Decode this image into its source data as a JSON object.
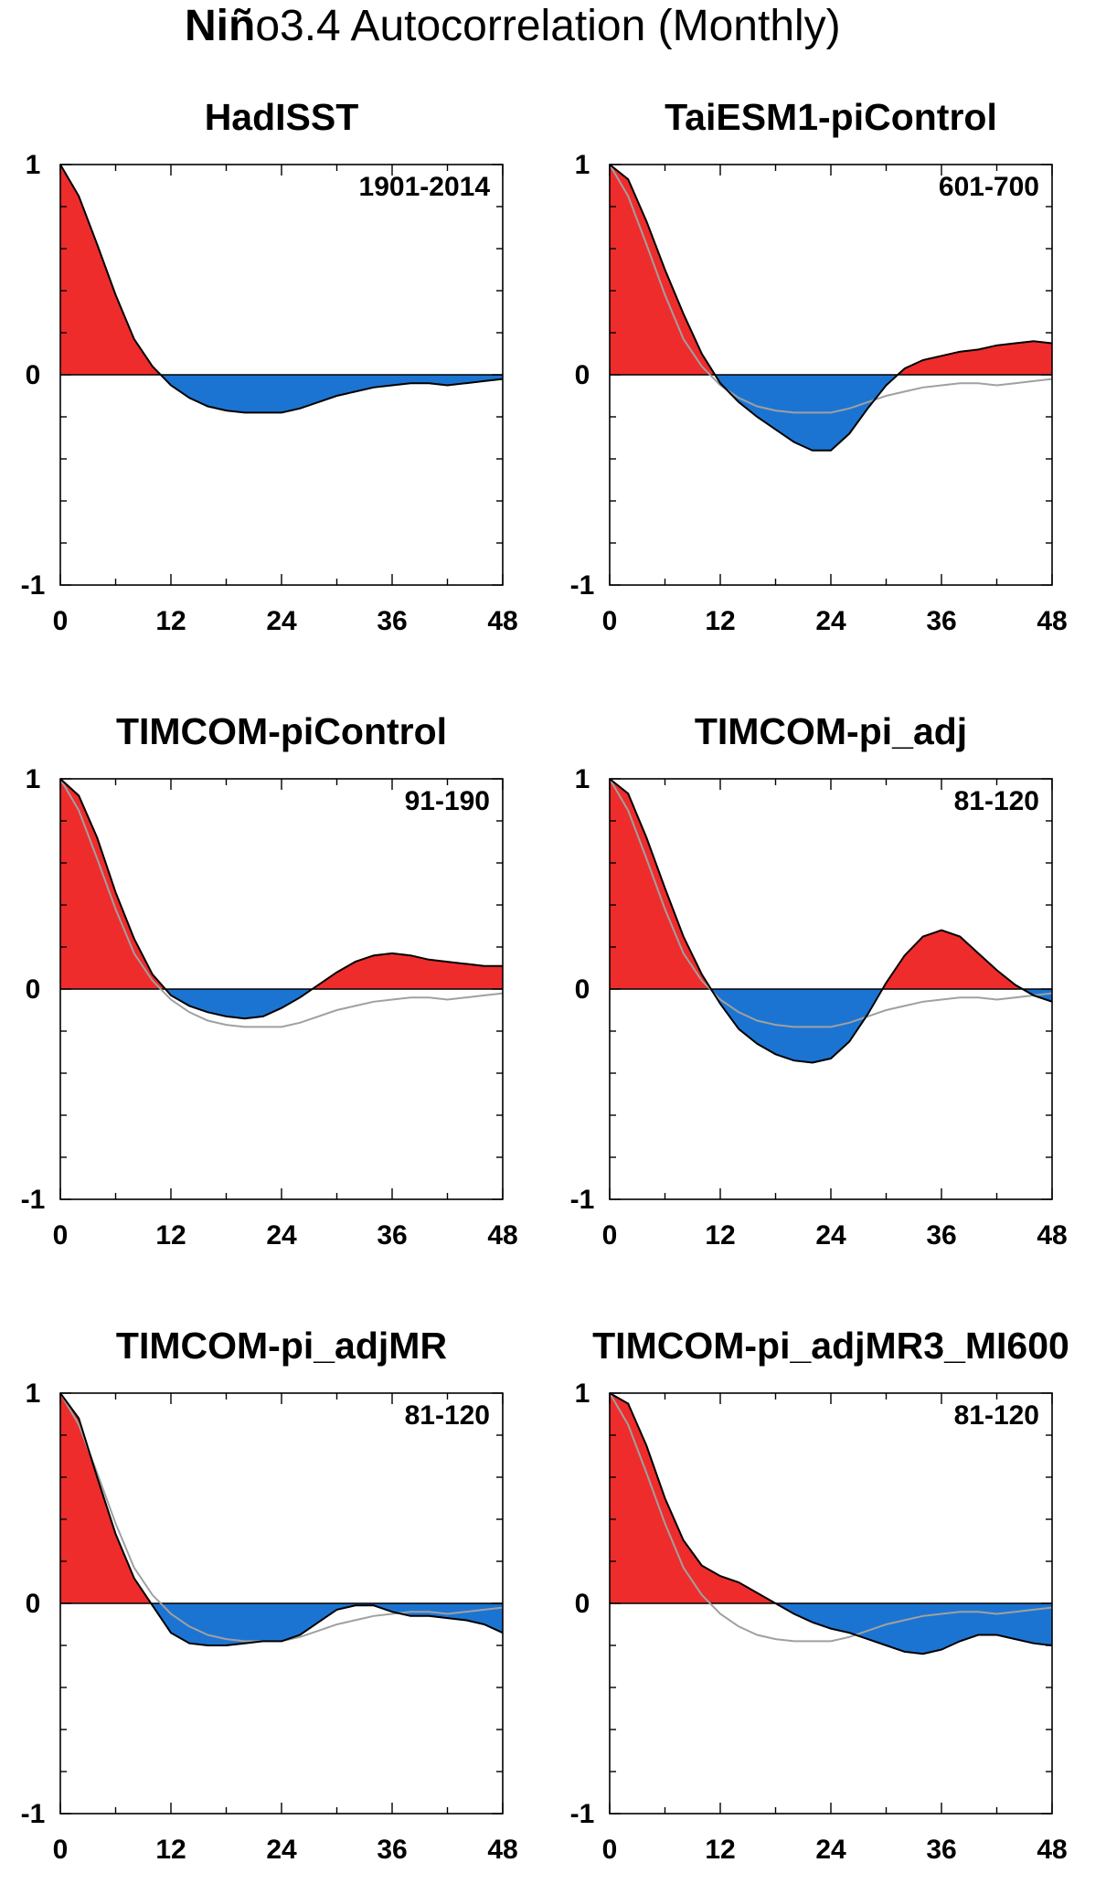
{
  "figure": {
    "title_bold": "Niñ",
    "title_rest": "o3.4 Autocorrelation (Monthly)"
  },
  "colors": {
    "positive": "#ee2c2c",
    "negative": "#1c74d2",
    "line": "#000000",
    "reference": "#a0a0a0"
  },
  "chart_data": [
    {
      "type": "area",
      "title": "HadISST",
      "period": "1901-2014",
      "xlim": [
        0,
        48
      ],
      "ylim": [
        -1,
        1
      ],
      "xticks": [
        0,
        12,
        24,
        36,
        48
      ],
      "yticks": [
        -1,
        0,
        1
      ],
      "xtick_labels": [
        "0",
        "12",
        "24",
        "36",
        "48"
      ],
      "ytick_labels": [
        "-1",
        "0",
        "1"
      ],
      "x": [
        0,
        2,
        4,
        6,
        8,
        10,
        12,
        14,
        16,
        18,
        20,
        22,
        24,
        26,
        28,
        30,
        32,
        34,
        36,
        38,
        40,
        42,
        44,
        46,
        48
      ],
      "values": [
        1.0,
        0.85,
        0.62,
        0.38,
        0.17,
        0.04,
        -0.05,
        -0.11,
        -0.15,
        -0.17,
        -0.18,
        -0.18,
        -0.18,
        -0.16,
        -0.13,
        -0.1,
        -0.08,
        -0.06,
        -0.05,
        -0.04,
        -0.04,
        -0.05,
        -0.04,
        -0.03,
        -0.02
      ]
    },
    {
      "type": "area",
      "title": "TaiESM1-piControl",
      "period": "601-700",
      "xlim": [
        0,
        48
      ],
      "ylim": [
        -1,
        1
      ],
      "xticks": [
        0,
        12,
        24,
        36,
        48
      ],
      "yticks": [
        -1,
        0,
        1
      ],
      "xtick_labels": [
        "0",
        "12",
        "24",
        "36",
        "48"
      ],
      "ytick_labels": [
        "-1",
        "0",
        "1"
      ],
      "x": [
        0,
        2,
        4,
        6,
        8,
        10,
        12,
        14,
        16,
        18,
        20,
        22,
        24,
        26,
        28,
        30,
        32,
        34,
        36,
        38,
        40,
        42,
        44,
        46,
        48
      ],
      "values": [
        1.0,
        0.93,
        0.73,
        0.5,
        0.29,
        0.1,
        -0.04,
        -0.13,
        -0.2,
        -0.26,
        -0.32,
        -0.36,
        -0.36,
        -0.28,
        -0.16,
        -0.05,
        0.03,
        0.07,
        0.09,
        0.11,
        0.12,
        0.14,
        0.15,
        0.16,
        0.15
      ],
      "reference_values": [
        1.0,
        0.85,
        0.62,
        0.38,
        0.17,
        0.04,
        -0.05,
        -0.11,
        -0.15,
        -0.17,
        -0.18,
        -0.18,
        -0.18,
        -0.16,
        -0.13,
        -0.1,
        -0.08,
        -0.06,
        -0.05,
        -0.04,
        -0.04,
        -0.05,
        -0.04,
        -0.03,
        -0.02
      ]
    },
    {
      "type": "area",
      "title": "TIMCOM-piControl",
      "period": "91-190",
      "xlim": [
        0,
        48
      ],
      "ylim": [
        -1,
        1
      ],
      "xticks": [
        0,
        12,
        24,
        36,
        48
      ],
      "yticks": [
        -1,
        0,
        1
      ],
      "xtick_labels": [
        "0",
        "12",
        "24",
        "36",
        "48"
      ],
      "ytick_labels": [
        "-1",
        "0",
        "1"
      ],
      "x": [
        0,
        2,
        4,
        6,
        8,
        10,
        12,
        14,
        16,
        18,
        20,
        22,
        24,
        26,
        28,
        30,
        32,
        34,
        36,
        38,
        40,
        42,
        44,
        46,
        48
      ],
      "values": [
        1.0,
        0.92,
        0.72,
        0.46,
        0.24,
        0.07,
        -0.03,
        -0.08,
        -0.11,
        -0.13,
        -0.14,
        -0.13,
        -0.09,
        -0.04,
        0.02,
        0.08,
        0.13,
        0.16,
        0.17,
        0.16,
        0.14,
        0.13,
        0.12,
        0.11,
        0.11
      ],
      "reference_values": [
        1.0,
        0.85,
        0.62,
        0.38,
        0.17,
        0.04,
        -0.05,
        -0.11,
        -0.15,
        -0.17,
        -0.18,
        -0.18,
        -0.18,
        -0.16,
        -0.13,
        -0.1,
        -0.08,
        -0.06,
        -0.05,
        -0.04,
        -0.04,
        -0.05,
        -0.04,
        -0.03,
        -0.02
      ]
    },
    {
      "type": "area",
      "title": "TIMCOM-pi_adj",
      "period": "81-120",
      "xlim": [
        0,
        48
      ],
      "ylim": [
        -1,
        1
      ],
      "xticks": [
        0,
        12,
        24,
        36,
        48
      ],
      "yticks": [
        -1,
        0,
        1
      ],
      "xtick_labels": [
        "0",
        "12",
        "24",
        "36",
        "48"
      ],
      "ytick_labels": [
        "-1",
        "0",
        "1"
      ],
      "x": [
        0,
        2,
        4,
        6,
        8,
        10,
        12,
        14,
        16,
        18,
        20,
        22,
        24,
        26,
        28,
        30,
        32,
        34,
        36,
        38,
        40,
        42,
        44,
        46,
        48
      ],
      "values": [
        1.0,
        0.93,
        0.72,
        0.48,
        0.25,
        0.07,
        -0.07,
        -0.19,
        -0.26,
        -0.31,
        -0.34,
        -0.35,
        -0.33,
        -0.25,
        -0.12,
        0.03,
        0.16,
        0.25,
        0.28,
        0.25,
        0.17,
        0.09,
        0.02,
        -0.03,
        -0.06
      ],
      "reference_values": [
        1.0,
        0.85,
        0.62,
        0.38,
        0.17,
        0.04,
        -0.05,
        -0.11,
        -0.15,
        -0.17,
        -0.18,
        -0.18,
        -0.18,
        -0.16,
        -0.13,
        -0.1,
        -0.08,
        -0.06,
        -0.05,
        -0.04,
        -0.04,
        -0.05,
        -0.04,
        -0.03,
        -0.02
      ]
    },
    {
      "type": "area",
      "title": "TIMCOM-pi_adjMR",
      "period": "81-120",
      "xlim": [
        0,
        48
      ],
      "ylim": [
        -1,
        1
      ],
      "xticks": [
        0,
        12,
        24,
        36,
        48
      ],
      "yticks": [
        -1,
        0,
        1
      ],
      "xtick_labels": [
        "0",
        "12",
        "24",
        "36",
        "48"
      ],
      "ytick_labels": [
        "-1",
        "0",
        "1"
      ],
      "x": [
        0,
        2,
        4,
        6,
        8,
        10,
        12,
        14,
        16,
        18,
        20,
        22,
        24,
        26,
        28,
        30,
        32,
        34,
        36,
        38,
        40,
        42,
        44,
        46,
        48
      ],
      "values": [
        1.0,
        0.88,
        0.6,
        0.33,
        0.12,
        -0.01,
        -0.14,
        -0.19,
        -0.2,
        -0.2,
        -0.19,
        -0.18,
        -0.18,
        -0.15,
        -0.09,
        -0.03,
        -0.01,
        -0.01,
        -0.04,
        -0.06,
        -0.06,
        -0.07,
        -0.08,
        -0.1,
        -0.14
      ],
      "reference_values": [
        1.0,
        0.85,
        0.62,
        0.38,
        0.17,
        0.04,
        -0.05,
        -0.11,
        -0.15,
        -0.17,
        -0.18,
        -0.18,
        -0.18,
        -0.16,
        -0.13,
        -0.1,
        -0.08,
        -0.06,
        -0.05,
        -0.04,
        -0.04,
        -0.05,
        -0.04,
        -0.03,
        -0.02
      ]
    },
    {
      "type": "area",
      "title": "TIMCOM-pi_adjMR3_MI600",
      "period": "81-120",
      "xlim": [
        0,
        48
      ],
      "ylim": [
        -1,
        1
      ],
      "xticks": [
        0,
        12,
        24,
        36,
        48
      ],
      "yticks": [
        -1,
        0,
        1
      ],
      "xtick_labels": [
        "0",
        "12",
        "24",
        "36",
        "48"
      ],
      "ytick_labels": [
        "-1",
        "0",
        "1"
      ],
      "x": [
        0,
        2,
        4,
        6,
        8,
        10,
        12,
        14,
        16,
        18,
        20,
        22,
        24,
        26,
        28,
        30,
        32,
        34,
        36,
        38,
        40,
        42,
        44,
        46,
        48
      ],
      "values": [
        1.0,
        0.95,
        0.75,
        0.5,
        0.3,
        0.18,
        0.13,
        0.1,
        0.05,
        0.0,
        -0.05,
        -0.09,
        -0.12,
        -0.14,
        -0.17,
        -0.2,
        -0.23,
        -0.24,
        -0.22,
        -0.18,
        -0.15,
        -0.15,
        -0.17,
        -0.19,
        -0.2
      ],
      "reference_values": [
        1.0,
        0.85,
        0.62,
        0.38,
        0.17,
        0.04,
        -0.05,
        -0.11,
        -0.15,
        -0.17,
        -0.18,
        -0.18,
        -0.18,
        -0.16,
        -0.13,
        -0.1,
        -0.08,
        -0.06,
        -0.05,
        -0.04,
        -0.04,
        -0.05,
        -0.04,
        -0.03,
        -0.02
      ]
    }
  ]
}
